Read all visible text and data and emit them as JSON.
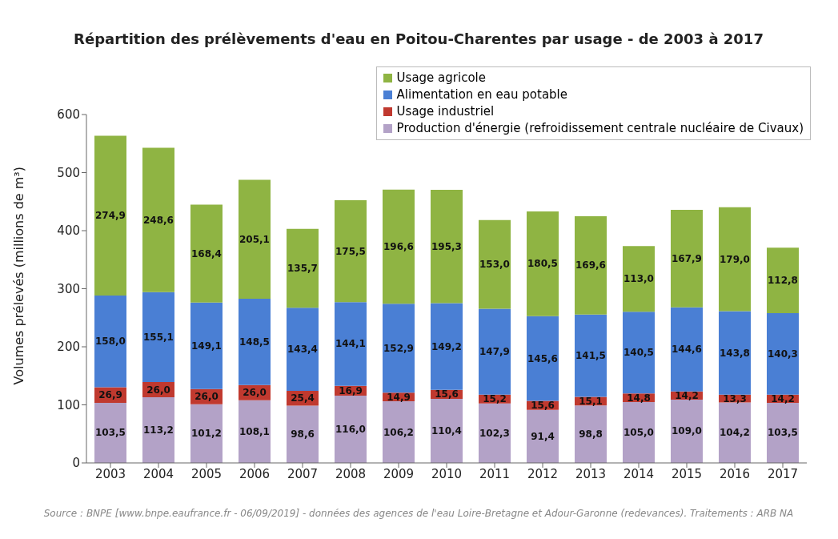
{
  "chart_data": {
    "type": "bar",
    "title": "Répartition des prélèvements d'eau en Poitou-Charentes par usage - de 2003 à 2017",
    "ylabel": "Volumes prélevés (millions de m³)",
    "categories": [
      "2003",
      "2004",
      "2005",
      "2006",
      "2007",
      "2008",
      "2009",
      "2010",
      "2011",
      "2012",
      "2013",
      "2014",
      "2015",
      "2016",
      "2017"
    ],
    "stacked": true,
    "ylim": [
      0,
      600
    ],
    "yticks": [
      0,
      100,
      200,
      300,
      400,
      500,
      600
    ],
    "legend": "top right",
    "series": [
      {
        "name": "Production d'énergie (refroidissement centrale nucléaire de Civaux)",
        "color": "#b3a2c7",
        "values": [
          103.5,
          113.2,
          101.2,
          108.1,
          98.6,
          116.0,
          106.2,
          110.4,
          102.3,
          91.4,
          98.8,
          105.0,
          109.0,
          104.2,
          103.5
        ],
        "value_labels": [
          "103,5",
          "113,2",
          "101,2",
          "108,1",
          "98,6",
          "116,0",
          "106,2",
          "110,4",
          "102,3",
          "91,4",
          "98,8",
          "105,0",
          "109,0",
          "104,2",
          "103,5"
        ]
      },
      {
        "name": "Usage industriel",
        "color": "#c0392f",
        "values": [
          26.9,
          26.0,
          26.0,
          26.0,
          25.4,
          16.9,
          14.9,
          15.6,
          15.2,
          15.6,
          15.1,
          14.8,
          14.2,
          13.3,
          14.2
        ],
        "value_labels": [
          "26,9",
          "26,0",
          "26,0",
          "26,0",
          "25,4",
          "16,9",
          "14,9",
          "15,6",
          "15,2",
          "15,6",
          "15,1",
          "14,8",
          "14,2",
          "13,3",
          "14,2"
        ]
      },
      {
        "name": "Alimentation en eau potable",
        "color": "#4a7fd4",
        "values": [
          158.0,
          155.1,
          149.1,
          148.5,
          143.4,
          144.1,
          152.9,
          149.2,
          147.9,
          145.6,
          141.5,
          140.5,
          144.6,
          143.8,
          140.3
        ],
        "value_labels": [
          "158,0",
          "155,1",
          "149,1",
          "148,5",
          "143,4",
          "144,1",
          "152,9",
          "149,2",
          "147,9",
          "145,6",
          "141,5",
          "140,5",
          "144,6",
          "143,8",
          "140,3"
        ]
      },
      {
        "name": "Usage agricole",
        "color": "#8fb443",
        "values": [
          274.9,
          248.6,
          168.4,
          205.1,
          135.7,
          175.5,
          196.6,
          195.3,
          153.0,
          180.5,
          169.6,
          113.0,
          167.9,
          179.0,
          112.8
        ],
        "value_labels": [
          "274,9",
          "248,6",
          "168,4",
          "205,1",
          "135,7",
          "175,5",
          "196,6",
          "195,3",
          "153,0",
          "180,5",
          "169,6",
          "113,0",
          "167,9",
          "179,0",
          "112,8"
        ]
      }
    ],
    "annotations": [
      "Source : BNPE [www.bnpe.eaufrance.fr - 06/09/2019]  - données des agences de l'eau Loire-Bretagne et Adour-Garonne (redevances). Traitements : ARB NA"
    ]
  }
}
